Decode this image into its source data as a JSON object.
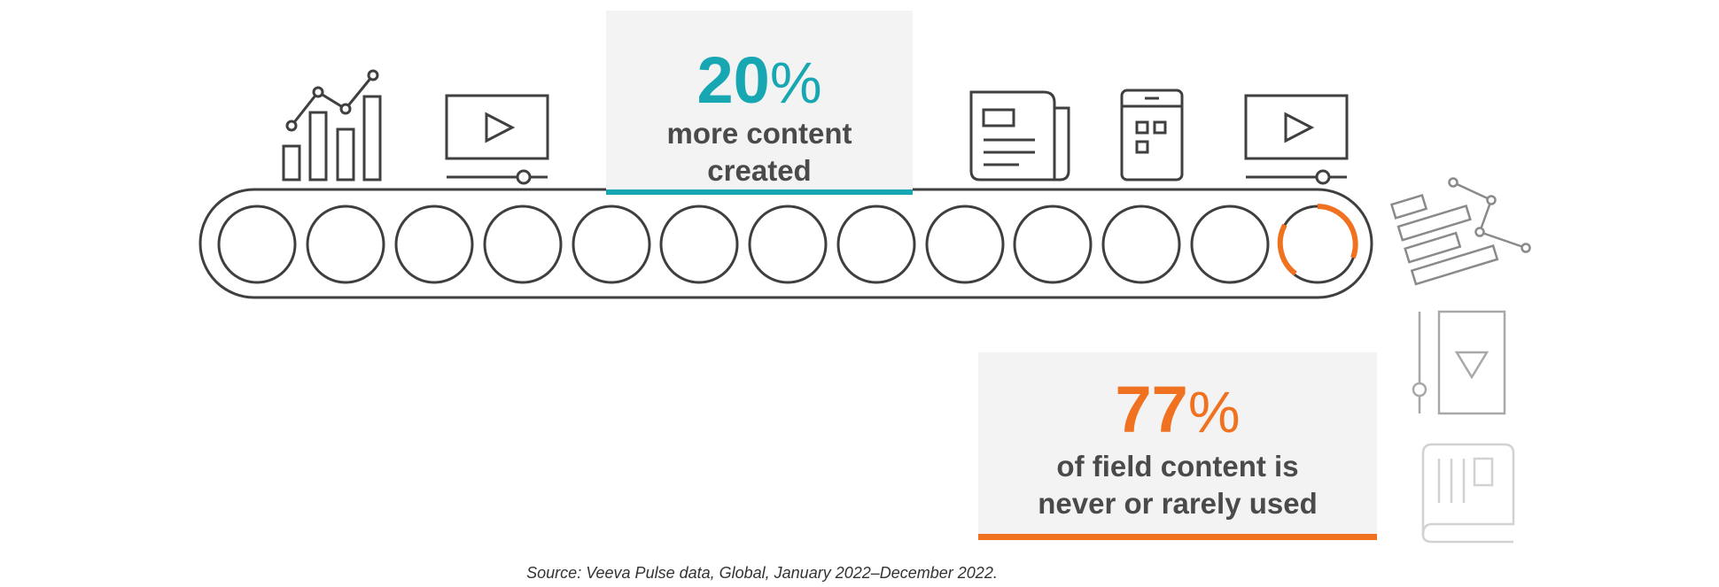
{
  "stats": {
    "more_content": {
      "value": "20",
      "unit": "%",
      "label_line1": "more content",
      "label_line2": "created"
    },
    "unused_content": {
      "value": "77",
      "unit": "%",
      "label_line1": "of field content is",
      "label_line2": "never or rarely used"
    }
  },
  "source": "Source: Veeva Pulse data, Global, January 2022–December 2022.",
  "colors": {
    "teal": "#17a7b3",
    "orange": "#f07221",
    "line": "#3f3f3f",
    "box_bg": "#f3f3f3"
  },
  "icons": [
    "bar-chart-icon",
    "video-player-icon",
    "newspaper-icon",
    "mobile-app-icon",
    "video-player-icon",
    "falling-document-icon",
    "falling-tablet-icon",
    "falling-book-icon"
  ]
}
